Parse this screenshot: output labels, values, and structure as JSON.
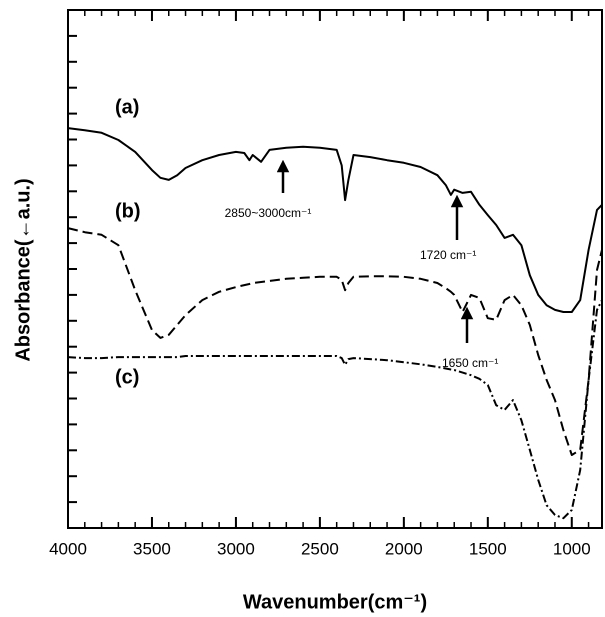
{
  "chart_data": {
    "type": "line",
    "x_label": "Wavenumber(cm⁻¹)",
    "y_label": "Absorbance(←a.u.)",
    "xlim": [
      4000,
      820
    ],
    "xticks": [
      4000,
      3500,
      3000,
      2500,
      2000,
      1500,
      1000
    ],
    "ylim": [
      0,
      100
    ],
    "yticks": [
      0,
      5,
      10,
      15,
      20,
      25,
      30,
      35,
      40,
      45,
      50,
      55,
      60,
      65,
      70,
      75,
      80,
      85,
      90,
      95,
      100
    ],
    "x": [
      4000,
      3900,
      3800,
      3700,
      3600,
      3500,
      3450,
      3400,
      3350,
      3300,
      3200,
      3100,
      3000,
      2950,
      2920,
      2900,
      2850,
      2800,
      2700,
      2600,
      2500,
      2400,
      2370,
      2350,
      2330,
      2300,
      2200,
      2100,
      2000,
      1900,
      1800,
      1750,
      1720,
      1700,
      1650,
      1600,
      1550,
      1500,
      1450,
      1400,
      1350,
      1300,
      1250,
      1200,
      1150,
      1100,
      1050,
      1000,
      950,
      900,
      850,
      820
    ],
    "series": [
      {
        "name": "(a)",
        "color": "#000000",
        "linestyle": "solid",
        "values": [
          77.2,
          76.8,
          76.3,
          74.9,
          72.6,
          69.1,
          67.6,
          67.2,
          68.1,
          69.5,
          71,
          72,
          72.6,
          72.4,
          71,
          72,
          70.7,
          73,
          73.4,
          73.6,
          73.4,
          73,
          70,
          63.3,
          67.2,
          72,
          71.6,
          71,
          70.5,
          69.7,
          68.1,
          66.2,
          64.3,
          65.3,
          64.7,
          64.9,
          62.4,
          60.4,
          58.5,
          56,
          56.6,
          54.6,
          48.8,
          45,
          43,
          42.1,
          41.7,
          41.7,
          44,
          53.7,
          61.4,
          62.4
        ]
      },
      {
        "name": "(b)",
        "color": "#000000",
        "linestyle": "dashed",
        "values": [
          57.9,
          57.1,
          56.6,
          54.6,
          45.9,
          38.2,
          36.7,
          37.3,
          39.2,
          41.1,
          44,
          45.6,
          46.5,
          46.9,
          47.1,
          47.3,
          47.5,
          47.7,
          48.1,
          48.3,
          48.5,
          48.5,
          47.9,
          45.9,
          47.3,
          48.5,
          48.6,
          48.6,
          48.5,
          48.1,
          47.3,
          46.3,
          45.6,
          45,
          41.7,
          45,
          44.4,
          40.5,
          40.2,
          44,
          45,
          43,
          39.2,
          33.4,
          28.6,
          24.7,
          18.9,
          14.1,
          15.1,
          28.6,
          49.8,
          53.7
        ]
      },
      {
        "name": "(c)",
        "color": "#000000",
        "linestyle": "dashdot",
        "values": [
          33,
          32.8,
          32.8,
          33,
          33,
          33,
          33,
          33,
          33,
          33.2,
          33.2,
          33.2,
          33.2,
          33.2,
          33.2,
          33.2,
          33.2,
          33.2,
          33.2,
          33.2,
          33.2,
          33.2,
          32.8,
          31.5,
          32.6,
          32.8,
          32.6,
          32.4,
          32,
          31.6,
          31.1,
          30.8,
          30.6,
          30.5,
          30,
          29.5,
          28.8,
          27.6,
          23.7,
          22.8,
          24.7,
          20.8,
          15.1,
          9.3,
          4.4,
          2.5,
          1.9,
          3.5,
          11.2,
          28.6,
          42.1,
          44
        ]
      }
    ],
    "annotations": [
      "2850~3000cm⁻¹",
      "1720 cm⁻¹",
      "1650 cm⁻¹"
    ]
  }
}
